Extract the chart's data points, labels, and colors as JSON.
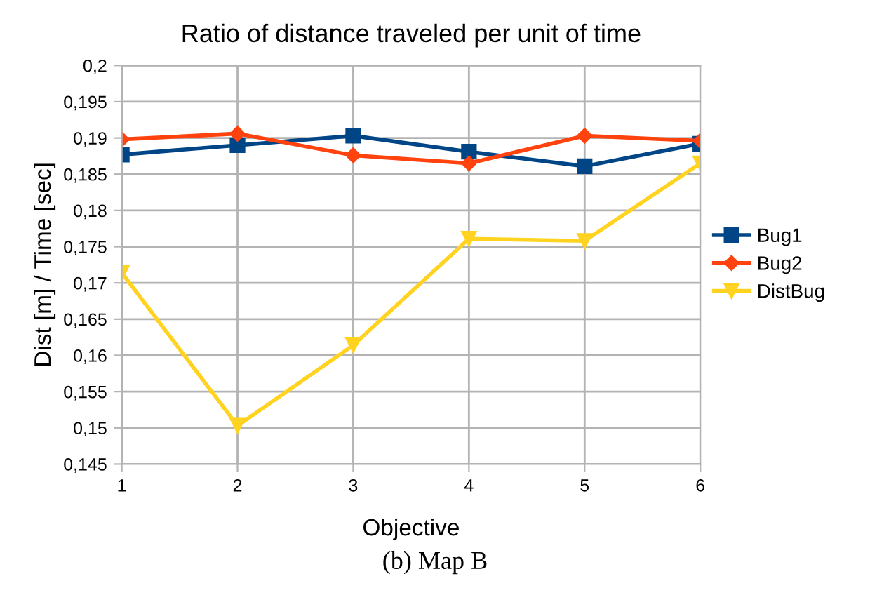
{
  "chart_data": {
    "type": "line",
    "title": "Ratio of distance traveled per unit of time",
    "xlabel": "Objective",
    "ylabel": "Dist [m] / Time [sec]",
    "categories": [
      "1",
      "2",
      "3",
      "4",
      "5",
      "6"
    ],
    "series": [
      {
        "name": "Bug1",
        "color": "#004586",
        "marker": "square",
        "values": [
          0.1877,
          0.189,
          0.1903,
          0.1881,
          0.1861,
          0.1892
        ]
      },
      {
        "name": "Bug2",
        "color": "#ff420e",
        "marker": "diamond",
        "values": [
          0.1898,
          0.1906,
          0.1876,
          0.1865,
          0.1903,
          0.1896
        ]
      },
      {
        "name": "DistBug",
        "color": "#ffd320",
        "marker": "triangle",
        "values": [
          0.1714,
          0.1503,
          0.1614,
          0.1761,
          0.1758,
          0.1865
        ]
      }
    ],
    "ylim": [
      0.145,
      0.2
    ],
    "yticks": [
      {
        "value": 0.145,
        "label": "0,145"
      },
      {
        "value": 0.15,
        "label": "0,15"
      },
      {
        "value": 0.155,
        "label": "0,155"
      },
      {
        "value": 0.16,
        "label": "0,16"
      },
      {
        "value": 0.165,
        "label": "0,165"
      },
      {
        "value": 0.17,
        "label": "0,17"
      },
      {
        "value": 0.175,
        "label": "0,175"
      },
      {
        "value": 0.18,
        "label": "0,18"
      },
      {
        "value": 0.185,
        "label": "0,185"
      },
      {
        "value": 0.19,
        "label": "0,19"
      },
      {
        "value": 0.195,
        "label": "0,195"
      },
      {
        "value": 0.2,
        "label": "0,2"
      }
    ],
    "grid": true,
    "legend": "right",
    "line_style": "solid",
    "annotations": [
      "(b) Map B"
    ]
  }
}
